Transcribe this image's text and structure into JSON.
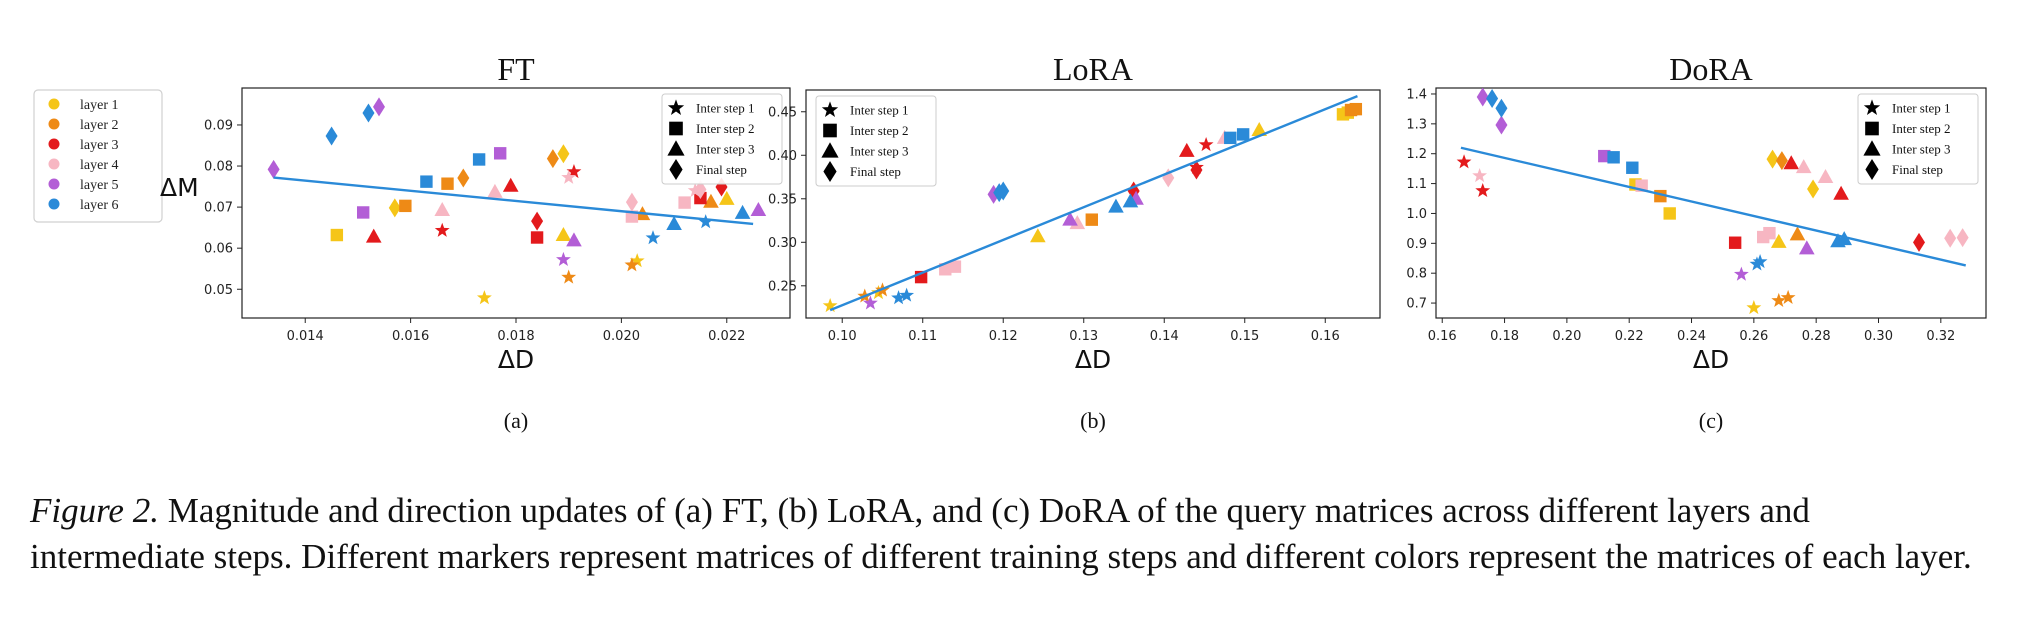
{
  "layer_colors": {
    "layer 1": "#f5c518",
    "layer 2": "#ee8a16",
    "layer 3": "#e31a1c",
    "layer 4": "#f7b6c2",
    "layer 5": "#b35ed6",
    "layer 6": "#2a8ad8"
  },
  "fit_line_color": "#2a8ad8",
  "layer_legend": [
    "layer 1",
    "layer 2",
    "layer 3",
    "layer 4",
    "layer 5",
    "layer 6"
  ],
  "marker_legend": [
    {
      "label": "Inter step 1",
      "marker": "star"
    },
    {
      "label": "Inter step 2",
      "marker": "square"
    },
    {
      "label": "Inter step 3",
      "marker": "triangle"
    },
    {
      "label": "Final step",
      "marker": "diamond"
    }
  ],
  "chart_data": [
    {
      "type": "scatter",
      "title": "FT",
      "xlabel": "ΔD",
      "ylabel": "ΔM",
      "sublabel": "(a)",
      "xlim": [
        0.0128,
        0.0232
      ],
      "ylim": [
        0.043,
        0.099
      ],
      "xticks": [
        "0.014",
        "0.016",
        "0.018",
        "0.020",
        "0.022"
      ],
      "yticks": [
        "0.05",
        "0.06",
        "0.07",
        "0.08",
        "0.09"
      ],
      "fit_line": {
        "x": [
          0.0134,
          0.0225
        ],
        "y": [
          0.0772,
          0.0659
        ]
      },
      "points": [
        {
          "x": 0.0174,
          "y": 0.0479,
          "layer": "layer 1",
          "marker": "star"
        },
        {
          "x": 0.0203,
          "y": 0.0569,
          "layer": "layer 1",
          "marker": "star"
        },
        {
          "x": 0.0146,
          "y": 0.0632,
          "layer": "layer 1",
          "marker": "square"
        },
        {
          "x": 0.0189,
          "y": 0.0632,
          "layer": "layer 1",
          "marker": "triangle"
        },
        {
          "x": 0.022,
          "y": 0.072,
          "layer": "layer 1",
          "marker": "triangle"
        },
        {
          "x": 0.0157,
          "y": 0.0698,
          "layer": "layer 1",
          "marker": "diamond"
        },
        {
          "x": 0.0189,
          "y": 0.083,
          "layer": "layer 1",
          "marker": "diamond"
        },
        {
          "x": 0.0202,
          "y": 0.0559,
          "layer": "layer 2",
          "marker": "star"
        },
        {
          "x": 0.019,
          "y": 0.0529,
          "layer": "layer 2",
          "marker": "star"
        },
        {
          "x": 0.0159,
          "y": 0.0703,
          "layer": "layer 2",
          "marker": "square"
        },
        {
          "x": 0.0167,
          "y": 0.0757,
          "layer": "layer 2",
          "marker": "square"
        },
        {
          "x": 0.0204,
          "y": 0.0683,
          "layer": "layer 2",
          "marker": "triangle"
        },
        {
          "x": 0.0217,
          "y": 0.0713,
          "layer": "layer 2",
          "marker": "triangle"
        },
        {
          "x": 0.017,
          "y": 0.0771,
          "layer": "layer 2",
          "marker": "diamond"
        },
        {
          "x": 0.0187,
          "y": 0.0818,
          "layer": "layer 2",
          "marker": "diamond"
        },
        {
          "x": 0.0166,
          "y": 0.0643,
          "layer": "layer 3",
          "marker": "star"
        },
        {
          "x": 0.0191,
          "y": 0.0786,
          "layer": "layer 3",
          "marker": "star"
        },
        {
          "x": 0.0184,
          "y": 0.0626,
          "layer": "layer 3",
          "marker": "square"
        },
        {
          "x": 0.0215,
          "y": 0.0722,
          "layer": "layer 3",
          "marker": "square"
        },
        {
          "x": 0.0153,
          "y": 0.0628,
          "layer": "layer 3",
          "marker": "triangle"
        },
        {
          "x": 0.0179,
          "y": 0.0752,
          "layer": "layer 3",
          "marker": "triangle"
        },
        {
          "x": 0.0184,
          "y": 0.0666,
          "layer": "layer 3",
          "marker": "diamond"
        },
        {
          "x": 0.0219,
          "y": 0.0749,
          "layer": "layer 3",
          "marker": "diamond"
        },
        {
          "x": 0.019,
          "y": 0.0772,
          "layer": "layer 4",
          "marker": "star"
        },
        {
          "x": 0.0214,
          "y": 0.074,
          "layer": "layer 4",
          "marker": "star"
        },
        {
          "x": 0.0202,
          "y": 0.0677,
          "layer": "layer 4",
          "marker": "square"
        },
        {
          "x": 0.0212,
          "y": 0.0711,
          "layer": "layer 4",
          "marker": "square"
        },
        {
          "x": 0.0166,
          "y": 0.0693,
          "layer": "layer 4",
          "marker": "triangle"
        },
        {
          "x": 0.0176,
          "y": 0.0737,
          "layer": "layer 4",
          "marker": "triangle"
        },
        {
          "x": 0.0202,
          "y": 0.0712,
          "layer": "layer 4",
          "marker": "diamond"
        },
        {
          "x": 0.0215,
          "y": 0.0743,
          "layer": "layer 4",
          "marker": "diamond"
        },
        {
          "x": 0.0189,
          "y": 0.0572,
          "layer": "layer 5",
          "marker": "star"
        },
        {
          "x": 0.0151,
          "y": 0.0687,
          "layer": "layer 5",
          "marker": "square"
        },
        {
          "x": 0.0177,
          "y": 0.0831,
          "layer": "layer 5",
          "marker": "square"
        },
        {
          "x": 0.0191,
          "y": 0.0619,
          "layer": "layer 5",
          "marker": "triangle"
        },
        {
          "x": 0.0226,
          "y": 0.0693,
          "layer": "layer 5",
          "marker": "triangle"
        },
        {
          "x": 0.0134,
          "y": 0.0792,
          "layer": "layer 5",
          "marker": "diamond"
        },
        {
          "x": 0.0154,
          "y": 0.0944,
          "layer": "layer 5",
          "marker": "diamond"
        },
        {
          "x": 0.0206,
          "y": 0.0625,
          "layer": "layer 6",
          "marker": "star"
        },
        {
          "x": 0.0163,
          "y": 0.0762,
          "layer": "layer 6",
          "marker": "square"
        },
        {
          "x": 0.0173,
          "y": 0.0816,
          "layer": "layer 6",
          "marker": "square"
        },
        {
          "x": 0.021,
          "y": 0.0659,
          "layer": "layer 6",
          "marker": "triangle"
        },
        {
          "x": 0.0223,
          "y": 0.0686,
          "layer": "layer 6",
          "marker": "triangle"
        },
        {
          "x": 0.0145,
          "y": 0.0873,
          "layer": "layer 6",
          "marker": "diamond"
        },
        {
          "x": 0.0152,
          "y": 0.0929,
          "layer": "layer 6",
          "marker": "diamond"
        },
        {
          "x": 0.0216,
          "y": 0.0664,
          "layer": "layer 6",
          "marker": "star"
        }
      ]
    },
    {
      "type": "scatter",
      "title": "LoRA",
      "xlabel": "ΔD",
      "ylabel": "",
      "sublabel": "(b)",
      "xlim": [
        0.0955,
        0.1668
      ],
      "ylim": [
        0.213,
        0.475
      ],
      "xticks": [
        "0.10",
        "0.11",
        "0.12",
        "0.13",
        "0.14",
        "0.15",
        "0.16"
      ],
      "yticks": [
        "0.25",
        "0.30",
        "0.35",
        "0.40",
        "0.45"
      ],
      "fit_line": {
        "x": [
          0.0985,
          0.164
        ],
        "y": [
          0.222,
          0.468
        ]
      },
      "points": [
        {
          "x": 0.0985,
          "y": 0.227,
          "layer": "layer 1",
          "marker": "star"
        },
        {
          "x": 0.1045,
          "y": 0.242,
          "layer": "layer 1",
          "marker": "star"
        },
        {
          "x": 0.1243,
          "y": 0.307,
          "layer": "layer 1",
          "marker": "triangle"
        },
        {
          "x": 0.1518,
          "y": 0.429,
          "layer": "layer 1",
          "marker": "triangle"
        },
        {
          "x": 0.1622,
          "y": 0.447,
          "layer": "layer 1",
          "marker": "square"
        },
        {
          "x": 0.1628,
          "y": 0.449,
          "layer": "layer 1",
          "marker": "square"
        },
        {
          "x": 0.1028,
          "y": 0.238,
          "layer": "layer 2",
          "marker": "star"
        },
        {
          "x": 0.105,
          "y": 0.245,
          "layer": "layer 2",
          "marker": "star"
        },
        {
          "x": 0.131,
          "y": 0.326,
          "layer": "layer 2",
          "marker": "square"
        },
        {
          "x": 0.1632,
          "y": 0.452,
          "layer": "layer 2",
          "marker": "square"
        },
        {
          "x": 0.1638,
          "y": 0.453,
          "layer": "layer 2",
          "marker": "square"
        },
        {
          "x": 0.1452,
          "y": 0.412,
          "layer": "layer 3",
          "marker": "star"
        },
        {
          "x": 0.144,
          "y": 0.386,
          "layer": "layer 3",
          "marker": "star"
        },
        {
          "x": 0.1098,
          "y": 0.26,
          "layer": "layer 3",
          "marker": "square"
        },
        {
          "x": 0.1428,
          "y": 0.405,
          "layer": "layer 3",
          "marker": "triangle"
        },
        {
          "x": 0.1362,
          "y": 0.359,
          "layer": "layer 3",
          "marker": "diamond"
        },
        {
          "x": 0.144,
          "y": 0.383,
          "layer": "layer 3",
          "marker": "diamond"
        },
        {
          "x": 0.1128,
          "y": 0.269,
          "layer": "layer 4",
          "marker": "square"
        },
        {
          "x": 0.114,
          "y": 0.272,
          "layer": "layer 4",
          "marker": "square"
        },
        {
          "x": 0.1292,
          "y": 0.322,
          "layer": "layer 4",
          "marker": "triangle"
        },
        {
          "x": 0.1475,
          "y": 0.42,
          "layer": "layer 4",
          "marker": "triangle"
        },
        {
          "x": 0.1405,
          "y": 0.374,
          "layer": "layer 4",
          "marker": "diamond"
        },
        {
          "x": 0.1035,
          "y": 0.23,
          "layer": "layer 5",
          "marker": "star"
        },
        {
          "x": 0.1283,
          "y": 0.326,
          "layer": "layer 5",
          "marker": "triangle"
        },
        {
          "x": 0.1188,
          "y": 0.355,
          "layer": "layer 5",
          "marker": "diamond"
        },
        {
          "x": 0.1365,
          "y": 0.35,
          "layer": "layer 5",
          "marker": "triangle"
        },
        {
          "x": 0.107,
          "y": 0.236,
          "layer": "layer 6",
          "marker": "star"
        },
        {
          "x": 0.108,
          "y": 0.239,
          "layer": "layer 6",
          "marker": "star"
        },
        {
          "x": 0.134,
          "y": 0.341,
          "layer": "layer 6",
          "marker": "triangle"
        },
        {
          "x": 0.1358,
          "y": 0.347,
          "layer": "layer 6",
          "marker": "triangle"
        },
        {
          "x": 0.1195,
          "y": 0.357,
          "layer": "layer 6",
          "marker": "diamond"
        },
        {
          "x": 0.12,
          "y": 0.359,
          "layer": "layer 6",
          "marker": "diamond"
        },
        {
          "x": 0.1482,
          "y": 0.42,
          "layer": "layer 6",
          "marker": "square"
        },
        {
          "x": 0.1498,
          "y": 0.424,
          "layer": "layer 6",
          "marker": "square"
        }
      ]
    },
    {
      "type": "scatter",
      "title": "DoRA",
      "xlabel": "ΔD",
      "ylabel": "",
      "sublabel": "(c)",
      "xlim": [
        0.158,
        0.3345
      ],
      "ylim": [
        0.65,
        1.42
      ],
      "xticks": [
        "0.16",
        "0.18",
        "0.20",
        "0.22",
        "0.24",
        "0.26",
        "0.28",
        "0.30",
        "0.32"
      ],
      "yticks": [
        "0.7",
        "0.8",
        "0.9",
        "1.0",
        "1.1",
        "1.2",
        "1.3",
        "1.4"
      ],
      "fit_line": {
        "x": [
          0.166,
          0.328
        ],
        "y": [
          1.22,
          0.826
        ]
      },
      "points": [
        {
          "x": 0.26,
          "y": 0.684,
          "layer": "layer 1",
          "marker": "star"
        },
        {
          "x": 0.233,
          "y": 1.0,
          "layer": "layer 1",
          "marker": "square"
        },
        {
          "x": 0.268,
          "y": 0.905,
          "layer": "layer 1",
          "marker": "triangle"
        },
        {
          "x": 0.266,
          "y": 1.182,
          "layer": "layer 1",
          "marker": "diamond"
        },
        {
          "x": 0.279,
          "y": 1.082,
          "layer": "layer 1",
          "marker": "diamond"
        },
        {
          "x": 0.268,
          "y": 0.708,
          "layer": "layer 2",
          "marker": "star"
        },
        {
          "x": 0.271,
          "y": 0.718,
          "layer": "layer 2",
          "marker": "star"
        },
        {
          "x": 0.23,
          "y": 1.058,
          "layer": "layer 2",
          "marker": "square"
        },
        {
          "x": 0.274,
          "y": 0.93,
          "layer": "layer 2",
          "marker": "triangle"
        },
        {
          "x": 0.269,
          "y": 1.177,
          "layer": "layer 2",
          "marker": "diamond"
        },
        {
          "x": 0.167,
          "y": 1.172,
          "layer": "layer 3",
          "marker": "star"
        },
        {
          "x": 0.173,
          "y": 1.076,
          "layer": "layer 3",
          "marker": "star"
        },
        {
          "x": 0.254,
          "y": 0.902,
          "layer": "layer 3",
          "marker": "square"
        },
        {
          "x": 0.272,
          "y": 1.168,
          "layer": "layer 3",
          "marker": "triangle"
        },
        {
          "x": 0.288,
          "y": 1.066,
          "layer": "layer 3",
          "marker": "triangle"
        },
        {
          "x": 0.313,
          "y": 0.903,
          "layer": "layer 3",
          "marker": "diamond"
        },
        {
          "x": 0.172,
          "y": 1.126,
          "layer": "layer 4",
          "marker": "star"
        },
        {
          "x": 0.263,
          "y": 0.921,
          "layer": "layer 4",
          "marker": "square"
        },
        {
          "x": 0.265,
          "y": 0.934,
          "layer": "layer 4",
          "marker": "square"
        },
        {
          "x": 0.276,
          "y": 1.155,
          "layer": "layer 4",
          "marker": "triangle"
        },
        {
          "x": 0.283,
          "y": 1.122,
          "layer": "layer 4",
          "marker": "triangle"
        },
        {
          "x": 0.323,
          "y": 0.917,
          "layer": "layer 4",
          "marker": "diamond"
        },
        {
          "x": 0.327,
          "y": 0.919,
          "layer": "layer 4",
          "marker": "diamond"
        },
        {
          "x": 0.256,
          "y": 0.796,
          "layer": "layer 5",
          "marker": "star"
        },
        {
          "x": 0.212,
          "y": 1.192,
          "layer": "layer 5",
          "marker": "square"
        },
        {
          "x": 0.277,
          "y": 0.883,
          "layer": "layer 5",
          "marker": "triangle"
        },
        {
          "x": 0.173,
          "y": 1.39,
          "layer": "layer 5",
          "marker": "diamond"
        },
        {
          "x": 0.179,
          "y": 1.296,
          "layer": "layer 5",
          "marker": "diamond"
        },
        {
          "x": 0.261,
          "y": 0.83,
          "layer": "layer 6",
          "marker": "star"
        },
        {
          "x": 0.262,
          "y": 0.838,
          "layer": "layer 6",
          "marker": "star"
        },
        {
          "x": 0.215,
          "y": 1.188,
          "layer": "layer 6",
          "marker": "square"
        },
        {
          "x": 0.221,
          "y": 1.153,
          "layer": "layer 6",
          "marker": "square"
        },
        {
          "x": 0.287,
          "y": 0.907,
          "layer": "layer 6",
          "marker": "triangle"
        },
        {
          "x": 0.289,
          "y": 0.914,
          "layer": "layer 6",
          "marker": "triangle"
        },
        {
          "x": 0.176,
          "y": 1.385,
          "layer": "layer 6",
          "marker": "diamond"
        },
        {
          "x": 0.179,
          "y": 1.352,
          "layer": "layer 6",
          "marker": "diamond"
        },
        {
          "x": 0.222,
          "y": 1.097,
          "layer": "layer 1",
          "marker": "square"
        },
        {
          "x": 0.224,
          "y": 1.093,
          "layer": "layer 4",
          "marker": "square"
        }
      ]
    }
  ],
  "caption": {
    "label": "Figure 2.",
    "text": " Magnitude and direction updates of (a) FT, (b) LoRA, and (c) DoRA of the query matrices across different layers and intermediate steps. Different markers represent matrices of different training steps and different colors represent the matrices of each layer."
  }
}
